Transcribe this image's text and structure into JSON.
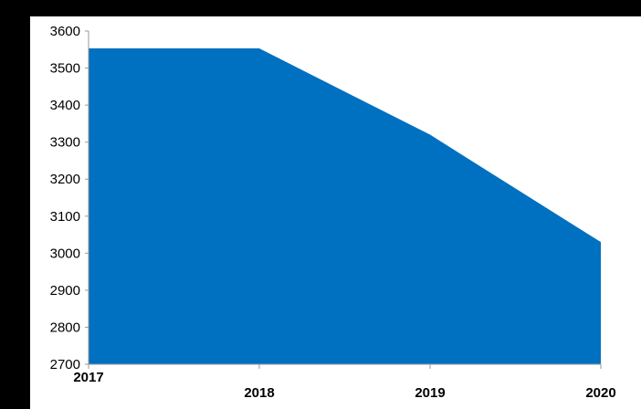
{
  "chart_data": {
    "type": "area",
    "categories": [
      "2017",
      "2018",
      "2019",
      "2020"
    ],
    "values": [
      3553,
      3553,
      3320,
      3030
    ],
    "ylim": [
      2700,
      3600
    ],
    "yticks": [
      2700,
      2800,
      2900,
      3000,
      3100,
      3200,
      3300,
      3400,
      3500,
      3600
    ],
    "title": "",
    "xlabel": "",
    "ylabel": "",
    "grid": false,
    "legend": "none",
    "fill_color": "#0070C0"
  }
}
